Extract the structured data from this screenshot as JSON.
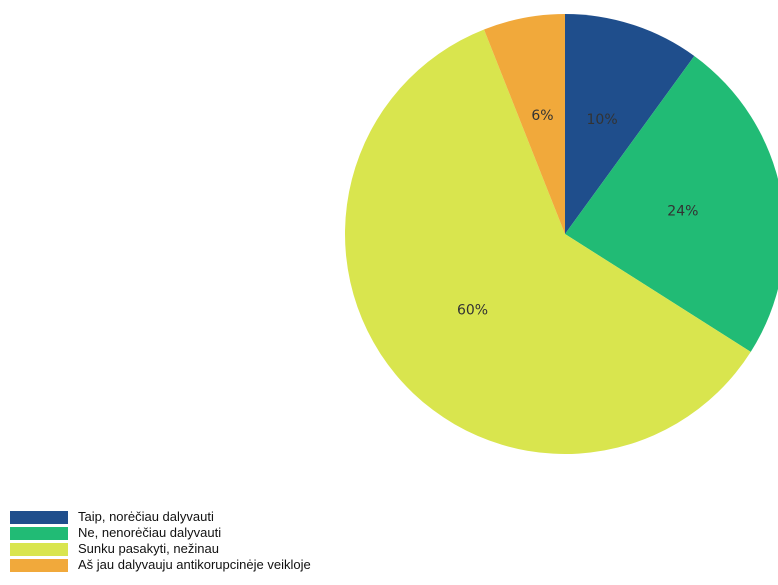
{
  "chart_data": {
    "type": "pie",
    "title": "",
    "slices": [
      {
        "label": "Taip, norėčiau dalyvauti",
        "value": 10,
        "value_label": "10%",
        "color": "#1f4e8c"
      },
      {
        "label": "Ne, nenorėčiau dalyvauti",
        "value": 24,
        "value_label": "24%",
        "color": "#21bb75"
      },
      {
        "label": "Sunku pasakyti, nežinau",
        "value": 60,
        "value_label": "60%",
        "color": "#d9e54e"
      },
      {
        "label": "Aš jau dalyvauju antikorupcinėje veikloje",
        "value": 6,
        "value_label": "6%",
        "color": "#f1a93b"
      }
    ],
    "start_angle": "12 o'clock",
    "direction": "clockwise",
    "legend": {
      "position": "bottom-left"
    }
  }
}
